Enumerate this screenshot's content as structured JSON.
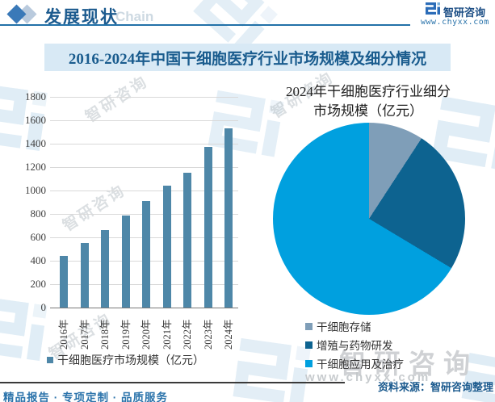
{
  "header": {
    "section_title": "发展现状",
    "chain_watermark": "Chain"
  },
  "brand": {
    "name": "智研咨询",
    "website": "www.chyxx.com"
  },
  "banner_title": "2016-2024年中国干细胞医疗行业市场规模及细分情况",
  "footer": {
    "source": "资料来源：智研咨询整理",
    "services": "精品报告 · 专项定制 · 品质服务"
  },
  "watermark": {
    "brand_text": "智研咨询",
    "site_text": "www.chyxx.com"
  },
  "colors": {
    "accent_blue": "#2271a8",
    "dark_blue": "#1b5a8e",
    "banner_bg": "#d8e9f5",
    "bar_fill": "#4e87a8",
    "grid": "#d9d9d9",
    "axis": "#7a7a7a"
  },
  "chart_data": [
    {
      "type": "bar",
      "title": "干细胞医疗市场规模",
      "categories": [
        "2016年",
        "2017年",
        "2018年",
        "2019年",
        "2020年",
        "2021年",
        "2022年",
        "2023年",
        "2024年"
      ],
      "values": [
        440,
        550,
        660,
        785,
        910,
        1040,
        1155,
        1370,
        1530
      ],
      "legend": "干细胞医疗市场规模（亿元）",
      "series_color": "#4e87a8",
      "ylim": [
        0,
        1800
      ],
      "ytick_step": 200,
      "grid": true,
      "xlabel": "",
      "ylabel": ""
    },
    {
      "type": "pie",
      "title_line1": "2024年干细胞医疗行业细分",
      "title_line2": "市场规模（亿元）",
      "title": "2024年干细胞医疗行业细分市场规模（亿元）",
      "slices": [
        {
          "label": "干细胞存储",
          "percent": 9.2,
          "color": "#7f9eb8"
        },
        {
          "label": "增殖与药物研发",
          "percent": 24.4,
          "color": "#0d6390"
        },
        {
          "label": "干细胞应用及治疗",
          "percent": 66.4,
          "color": "#00a0df"
        }
      ],
      "legend_position": "bottom-left-of-pie"
    }
  ]
}
